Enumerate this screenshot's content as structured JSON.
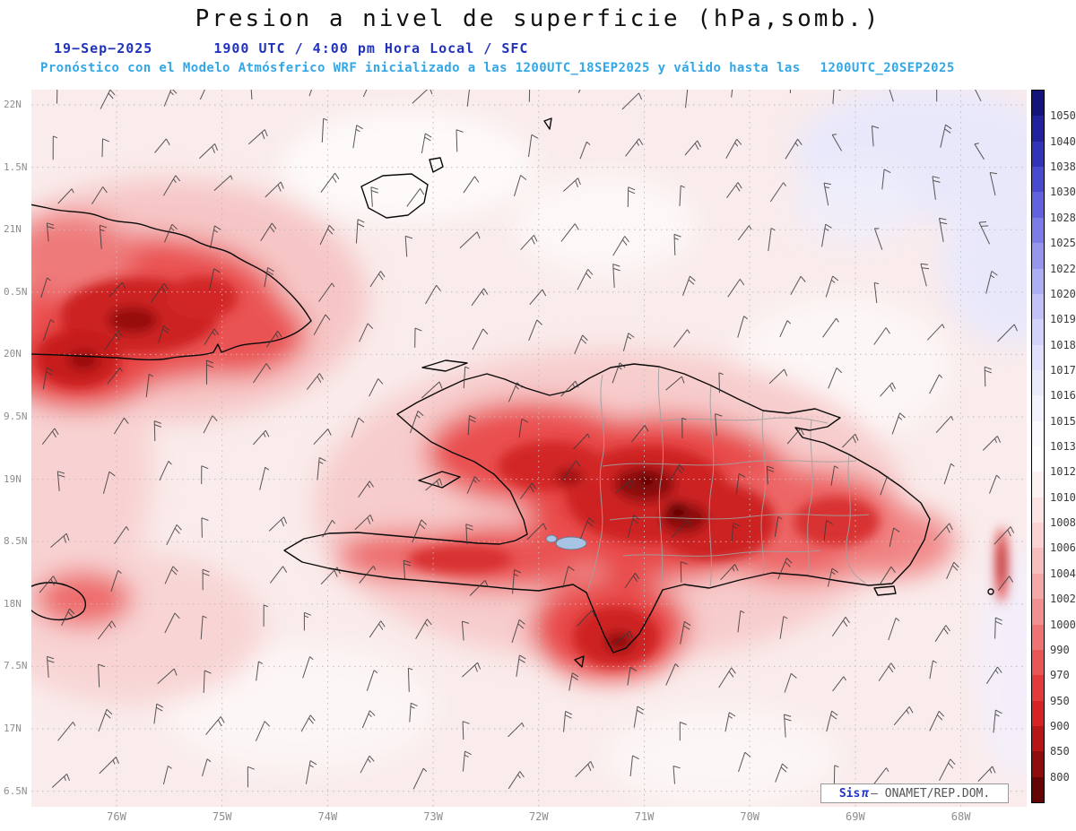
{
  "header": {
    "title": "Presion a nivel de superficie (hPa,somb.)",
    "date": "19−Sep−2025",
    "time": "1900 UTC / 4:00 pm Hora Local / SFC",
    "forecast": "Pronóstico con el Modelo Atmósferico WRF inicializado a las 1200UTC_18SEP2025 y válido hasta las",
    "valid": "1200UTC_20SEP2025"
  },
  "axes": {
    "lat_labels": [
      "22N",
      "1.5N",
      "21N",
      "0.5N",
      "20N",
      "9.5N",
      "19N",
      "8.5N",
      "18N",
      "7.5N",
      "17N",
      "6.5N"
    ],
    "lon_labels": [
      "76W",
      "75W",
      "74W",
      "73W",
      "72W",
      "71W",
      "70W",
      "69W",
      "68W"
    ]
  },
  "colorbar": {
    "unit": "hPa",
    "values": [
      "1050",
      "1040",
      "1038",
      "1030",
      "1028",
      "1025",
      "1022",
      "1020",
      "1019",
      "1018",
      "1017",
      "1016",
      "1015",
      "1013",
      "1012",
      "1010",
      "1008",
      "1006",
      "1004",
      "1002",
      "1000",
      "990",
      "970",
      "950",
      "900",
      "850",
      "800"
    ],
    "colors": [
      "#14147a",
      "#22229c",
      "#3333b8",
      "#4a4ace",
      "#6262dc",
      "#7c7ce6",
      "#9696ee",
      "#aeaef4",
      "#c2c2f8",
      "#d2d2fa",
      "#e0e0fc",
      "#eaeafd",
      "#f3f3fe",
      "#fafaff",
      "#ffffff",
      "#fdf2f2",
      "#fce4e4",
      "#fad2d2",
      "#f8bebe",
      "#f5a8a8",
      "#f29090",
      "#ee7474",
      "#e95656",
      "#e33a3a",
      "#d62424",
      "#b61616",
      "#8e0c0c",
      "#640404"
    ]
  },
  "colors": {
    "title_text": "#111111",
    "date_line": "#2233bb",
    "forecast_line": "#33a7e6",
    "axis_labels": "#8d8d8d",
    "sea_base": "#faecec",
    "lake": "#a8c4e4"
  },
  "attribution": {
    "brand": "Sis",
    "pi": "π",
    "org": "— ONAMET/REP.DOM."
  }
}
